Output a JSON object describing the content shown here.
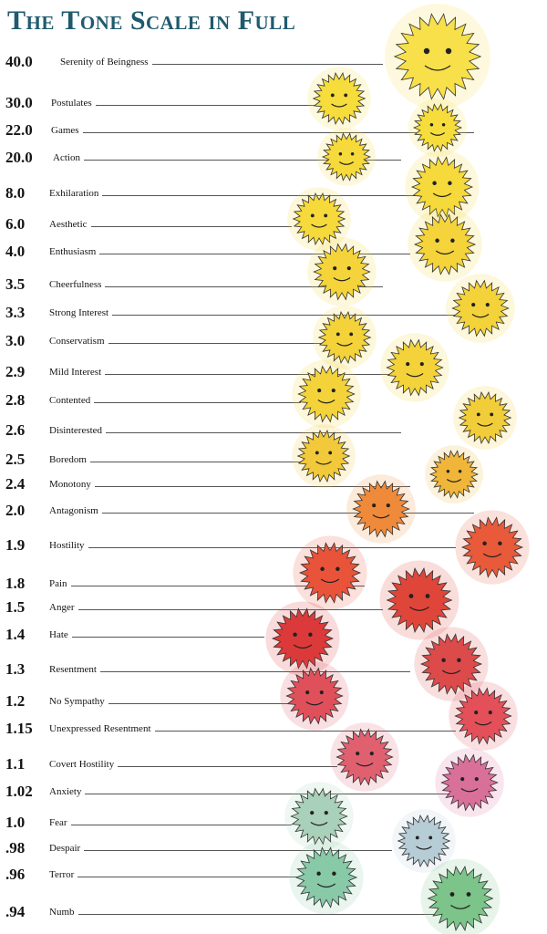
{
  "title": "The Tone Scale in Full",
  "tones": [
    {
      "value": "40.0",
      "label": "Serenity of Beingness",
      "color": "#f7e04a"
    },
    {
      "value": "30.0",
      "label": "Postulates",
      "color": "#f6dd3b"
    },
    {
      "value": "22.0",
      "label": "Games",
      "color": "#f6dd3b"
    },
    {
      "value": "20.0",
      "label": "Action",
      "color": "#f6d93a"
    },
    {
      "value": "8.0",
      "label": "Exhilaration",
      "color": "#f6d93a"
    },
    {
      "value": "6.0",
      "label": "Aesthetic",
      "color": "#f6d93a"
    },
    {
      "value": "4.0",
      "label": "Enthusiasm",
      "color": "#f4d43a"
    },
    {
      "value": "3.5",
      "label": "Cheerfulness",
      "color": "#f4d43a"
    },
    {
      "value": "3.3",
      "label": "Strong Interest",
      "color": "#f4d23a"
    },
    {
      "value": "3.0",
      "label": "Conservatism",
      "color": "#f4d23a"
    },
    {
      "value": "2.9",
      "label": "Mild Interest",
      "color": "#f4d23a"
    },
    {
      "value": "2.8",
      "label": "Contented",
      "color": "#f4d23a"
    },
    {
      "value": "2.6",
      "label": "Disinterested",
      "color": "#f2cd3a"
    },
    {
      "value": "2.5",
      "label": "Boredom",
      "color": "#f2c93a"
    },
    {
      "value": "2.4",
      "label": "Monotony",
      "color": "#f0b63a"
    },
    {
      "value": "2.0",
      "label": "Antagonism",
      "color": "#ee8a3a"
    },
    {
      "value": "1.9",
      "label": "Hostility",
      "color": "#e85a3a"
    },
    {
      "value": "1.8",
      "label": "Pain",
      "color": "#e8533a"
    },
    {
      "value": "1.5",
      "label": "Anger",
      "color": "#e0453a"
    },
    {
      "value": "1.4",
      "label": "Hate",
      "color": "#dc3a3a"
    },
    {
      "value": "1.3",
      "label": "Resentment",
      "color": "#dd4a4a"
    },
    {
      "value": "1.2",
      "label": "No Sympathy",
      "color": "#e0505a"
    },
    {
      "value": "1.15",
      "label": "Unexpressed Resentment",
      "color": "#e3505a"
    },
    {
      "value": "1.1",
      "label": "Covert Hostility",
      "color": "#e06070"
    },
    {
      "value": "1.02",
      "label": "Anxiety",
      "color": "#d9709a"
    },
    {
      "value": "1.0",
      "label": "Fear",
      "color": "#a9d0b8"
    },
    {
      "value": ".98",
      "label": "Despair",
      "color": "#b6cdd6"
    },
    {
      "value": ".96",
      "label": "Terror",
      "color": "#88c9a8"
    },
    {
      "value": ".94",
      "label": "Numb",
      "color": "#7cc48a"
    }
  ]
}
